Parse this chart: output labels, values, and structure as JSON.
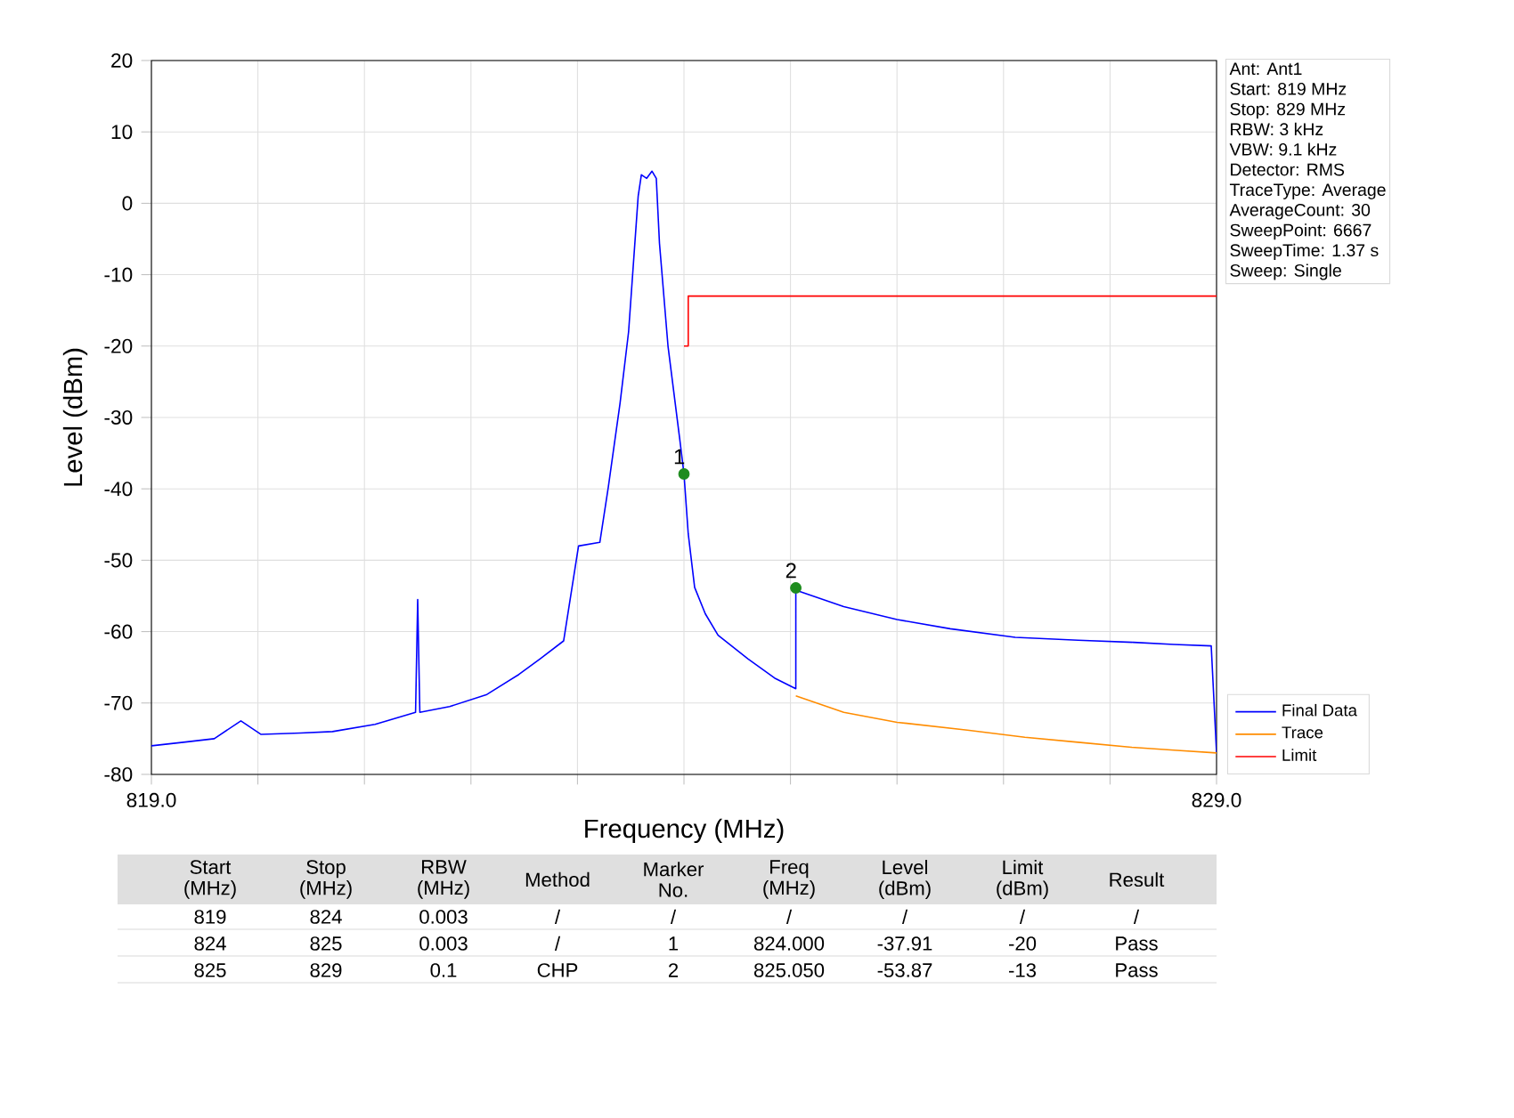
{
  "chart_data": {
    "type": "line",
    "xlabel": "Frequency (MHz)",
    "ylabel": "Level (dBm)",
    "xlim": [
      819,
      829
    ],
    "ylim": [
      -80,
      20
    ],
    "xticks": [
      {
        "value": 819,
        "label": "819.0"
      },
      {
        "value": 820,
        "label": null
      },
      {
        "value": 821,
        "label": null
      },
      {
        "value": 822,
        "label": null
      },
      {
        "value": 823,
        "label": null
      },
      {
        "value": 824,
        "label": null
      },
      {
        "value": 825,
        "label": null
      },
      {
        "value": 826,
        "label": null
      },
      {
        "value": 827,
        "label": null
      },
      {
        "value": 828,
        "label": null
      },
      {
        "value": 829,
        "label": "829.0"
      }
    ],
    "yticks": [
      -80,
      -70,
      -60,
      -50,
      -40,
      -30,
      -20,
      -10,
      0,
      10,
      20
    ],
    "grid": true,
    "legend": "bottom right",
    "series": [
      {
        "name": "Final Data",
        "color": "#0000ff",
        "type": "line",
        "x": [
          819,
          819.3,
          819.59,
          819.84,
          820.03,
          820.4,
          820.7,
          821.1,
          821.48,
          821.5,
          821.52,
          821.8,
          822.15,
          822.45,
          822.65,
          822.87,
          823.01,
          823.21,
          823.29,
          823.4,
          823.48,
          823.57,
          823.6,
          823.65,
          823.7,
          823.74,
          823.77,
          823.85,
          823.96,
          824.0,
          824.04,
          824.1,
          824.2,
          824.32,
          824.6,
          824.85,
          825.05,
          825.05,
          825.5,
          826.0,
          826.5,
          827.11,
          827.7,
          828.22,
          828.6,
          828.95,
          829
        ],
        "values": [
          -76,
          -75.5,
          -75,
          -72.5,
          -74.4,
          -74.2,
          -74,
          -73,
          -71.3,
          -55.5,
          -71.3,
          -70.5,
          -68.8,
          -66,
          -63.8,
          -61.3,
          -48,
          -47.5,
          -39.7,
          -28,
          -18,
          1,
          4,
          3.5,
          4.5,
          3.5,
          -5.6,
          -20,
          -33,
          -37.91,
          -46.3,
          -53.8,
          -57.5,
          -60.5,
          -63.8,
          -66.5,
          -68,
          -54.2,
          -56.5,
          -58.3,
          -59.6,
          -60.8,
          -61.2,
          -61.5,
          -61.8,
          -62,
          -77
        ]
      },
      {
        "name": "Trace",
        "color": "#ff8c00",
        "type": "line",
        "x": [
          825.05,
          825.5,
          826.0,
          826.66,
          827.2,
          827.7,
          828.2,
          828.6,
          829
        ],
        "values": [
          -69,
          -71.3,
          -72.7,
          -73.8,
          -74.8,
          -75.5,
          -76.2,
          -76.6,
          -77
        ]
      },
      {
        "name": "Limit",
        "color": "#ff0000",
        "type": "line",
        "x": [
          824,
          824.04,
          824.04,
          829
        ],
        "values": [
          -20,
          -20,
          -13,
          -13
        ]
      },
      {
        "color": "#1e8c1e",
        "type": "scatter",
        "marker": "circle",
        "x": [
          824.0,
          825.05
        ],
        "values": [
          -37.91,
          -53.87
        ]
      }
    ],
    "annotations": [
      {
        "text": "1",
        "x": 824.0,
        "y": -37.91
      },
      {
        "text": "2",
        "x": 825.05,
        "y": -53.87
      },
      "Ant: Ant1",
      "Start: 819 MHz",
      "Stop: 829 MHz",
      "RBW: 3 kHz",
      "VBW: 9.1 kHz",
      "Detector: RMS",
      "TraceType: Average",
      "AverageCount: 30",
      "SweepPoint: 6667",
      "SweepTime: 1.37 s",
      "Sweep: Single",
      "Start (MHz)",
      "Stop (MHz)",
      "RBW (MHz)",
      "Method",
      "Marker No.",
      "Freq (MHz)",
      "Level (dBm)",
      "Limit (dBm)",
      "Result",
      "819",
      "824",
      "0.003",
      "/",
      "/",
      "/",
      "/",
      "/",
      "/",
      "824",
      "825",
      "0.003",
      "/",
      "1",
      "824.000",
      "-37.91",
      "-20",
      "Pass",
      "825",
      "829",
      "0.1",
      "CHP",
      "2",
      "825.050",
      "-53.87",
      "-13",
      "Pass"
    ]
  }
}
